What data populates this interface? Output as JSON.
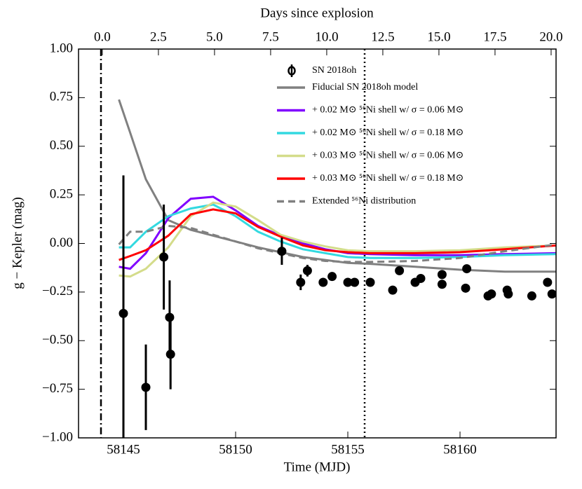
{
  "chart_data": {
    "type": "line",
    "xlabel": "Time (MJD)",
    "ylabel": "g − Kepler (mag)",
    "x2label": "Days since explosion",
    "xlim": [
      58143,
      58164.28
    ],
    "xticks": [
      58145,
      58150,
      58155,
      58160
    ],
    "x2lim": [
      -1.06,
      20.22
    ],
    "x2ticks": [
      {
        "value": 0,
        "label": "0.0"
      },
      {
        "value": 2.5,
        "label": "2.5"
      },
      {
        "value": 5,
        "label": "5.0"
      },
      {
        "value": 7.5,
        "label": "7.5"
      },
      {
        "value": 10,
        "label": "10.0"
      },
      {
        "value": 12.5,
        "label": "12.5"
      },
      {
        "value": 15,
        "label": "15.0"
      },
      {
        "value": 17.5,
        "label": "17.5"
      },
      {
        "value": 20,
        "label": "20.0"
      }
    ],
    "ylim": [
      -1,
      1
    ],
    "yticks": [
      {
        "value": -1,
        "label": "−1.00"
      },
      {
        "value": -0.75,
        "label": "−0.75"
      },
      {
        "value": -0.5,
        "label": "−0.50"
      },
      {
        "value": -0.25,
        "label": "−0.25"
      },
      {
        "value": 0,
        "label": "0.00"
      },
      {
        "value": 0.25,
        "label": "0.25"
      },
      {
        "value": 0.5,
        "label": "0.50"
      },
      {
        "value": 0.75,
        "label": "0.75"
      },
      {
        "value": 1,
        "label": "1.00"
      }
    ],
    "vlines": [
      {
        "x": 58144.0,
        "style": "dashdot"
      },
      {
        "x": 58155.75,
        "style": "dotted"
      }
    ],
    "points": {
      "name": "SN 2018oh",
      "color": "#000000",
      "x": [
        58145.0,
        58146.0,
        58146.8,
        58147.06,
        58147.1,
        58152.06,
        58152.9,
        58153.2,
        58153.9,
        58154.3,
        58155.0,
        58155.3,
        58156.0,
        58157.0,
        58157.3,
        58158.0,
        58158.25,
        58159.2,
        58159.2,
        58160.25,
        58160.3,
        58161.25,
        58161.4,
        58162.1,
        58162.15,
        58163.2,
        58163.9,
        58164.1
      ],
      "values": [
        -0.36,
        -0.74,
        -0.07,
        -0.38,
        -0.57,
        -0.04,
        -0.2,
        -0.14,
        -0.2,
        -0.17,
        -0.2,
        -0.2,
        -0.2,
        -0.24,
        -0.14,
        -0.2,
        -0.18,
        -0.16,
        -0.21,
        -0.23,
        -0.13,
        -0.27,
        -0.26,
        -0.24,
        -0.26,
        -0.27,
        -0.2,
        -0.26
      ],
      "errors": [
        0.71,
        0.22,
        0.27,
        0.19,
        0.18,
        0.07,
        0.04,
        0.03,
        0.02,
        0.02,
        0.02,
        0.02,
        0.02,
        0.02,
        0.02,
        0.02,
        0.02,
        0.02,
        0.02,
        0.02,
        0.02,
        0.02,
        0.02,
        0.02,
        0.02,
        0.02,
        0.02,
        0.02
      ]
    },
    "x": [
      58144.8,
      58145.3,
      58146,
      58147,
      58148,
      58149,
      58150,
      58151,
      58152,
      58153,
      58154,
      58155,
      58156,
      58158,
      58160,
      58162,
      58164.3
    ],
    "series": [
      {
        "name": "Fiducial SN 2018oh model",
        "color": "#808080",
        "linestyle": "solid",
        "values": [
          0.74,
          0.57,
          0.33,
          0.12,
          0.07,
          0.04,
          0.01,
          -0.02,
          -0.045,
          -0.07,
          -0.085,
          -0.1,
          -0.105,
          -0.12,
          -0.135,
          -0.145,
          -0.145
        ]
      },
      {
        "name": "+ 0.02 M⊙ ⁵⁶Ni shell w/ σ = 0.06 M⊙",
        "color": "#8000ff",
        "linestyle": "solid",
        "values": [
          -0.12,
          -0.13,
          -0.05,
          0.13,
          0.23,
          0.24,
          0.17,
          0.09,
          0.04,
          0.0,
          -0.03,
          -0.05,
          -0.055,
          -0.06,
          -0.06,
          -0.055,
          -0.05
        ]
      },
      {
        "name": "+ 0.02 M⊙ ⁵⁶Ni shell w/ σ = 0.18 M⊙",
        "color": "#33d9e0",
        "linestyle": "solid",
        "values": [
          -0.02,
          -0.02,
          0.06,
          0.14,
          0.18,
          0.2,
          0.14,
          0.06,
          0.01,
          -0.03,
          -0.05,
          -0.07,
          -0.075,
          -0.075,
          -0.07,
          -0.06,
          -0.055
        ]
      },
      {
        "name": "+ 0.03 M⊙ ⁵⁶Ni shell w/ σ = 0.06 M⊙",
        "color": "#d4dc8a",
        "linestyle": "solid",
        "values": [
          -0.165,
          -0.17,
          -0.13,
          -0.02,
          0.14,
          0.21,
          0.19,
          0.12,
          0.045,
          0.01,
          -0.015,
          -0.035,
          -0.04,
          -0.04,
          -0.035,
          -0.02,
          -0.01
        ]
      },
      {
        "name": "+ 0.03 M⊙ ⁵⁶Ni shell w/ σ = 0.18 M⊙",
        "color": "#ff0000",
        "linestyle": "solid",
        "values": [
          -0.085,
          -0.065,
          -0.035,
          0.04,
          0.15,
          0.175,
          0.155,
          0.085,
          0.035,
          -0.01,
          -0.035,
          -0.045,
          -0.05,
          -0.05,
          -0.045,
          -0.03,
          -0.01
        ]
      },
      {
        "name": "Extended ⁵⁶Ni distribution",
        "color": "#808080",
        "linestyle": "dashed",
        "values": [
          -0.005,
          0.06,
          0.06,
          0.09,
          0.08,
          0.045,
          0.01,
          -0.025,
          -0.05,
          -0.075,
          -0.09,
          -0.095,
          -0.095,
          -0.09,
          -0.075,
          -0.04,
          -0.005
        ]
      }
    ]
  }
}
